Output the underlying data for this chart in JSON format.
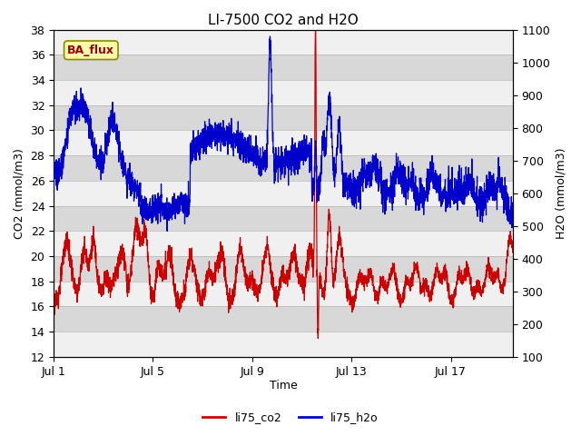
{
  "title": "LI-7500 CO2 and H2O",
  "xlabel": "Time",
  "ylabel_left": "CO2 (mmol/m3)",
  "ylabel_right": "H2O (mmol/m3)",
  "ylim_left": [
    12,
    38
  ],
  "ylim_right": [
    100,
    1100
  ],
  "xlim": [
    0,
    18.5
  ],
  "xtick_positions": [
    0,
    4,
    8,
    12,
    16
  ],
  "xtick_labels": [
    "Jul 1",
    "Jul 5",
    "Jul 9",
    "Jul 13",
    "Jul 17"
  ],
  "legend_labels": [
    "li75_co2",
    "li75_h2o"
  ],
  "legend_colors": [
    "#cc0000",
    "#0000cc"
  ],
  "annotation_text": "BA_flux",
  "annotation_bg": "#ffffaa",
  "annotation_border": "#888800",
  "annotation_text_color": "#990000",
  "color_co2": "#cc0000",
  "color_h2o": "#0000cc",
  "plot_bg_color": "#d8d8d8",
  "stripe_color": "#f0f0f0",
  "fig_bg_color": "#ffffff",
  "title_fontsize": 11,
  "axis_fontsize": 9,
  "tick_fontsize": 9,
  "linewidth": 0.9
}
